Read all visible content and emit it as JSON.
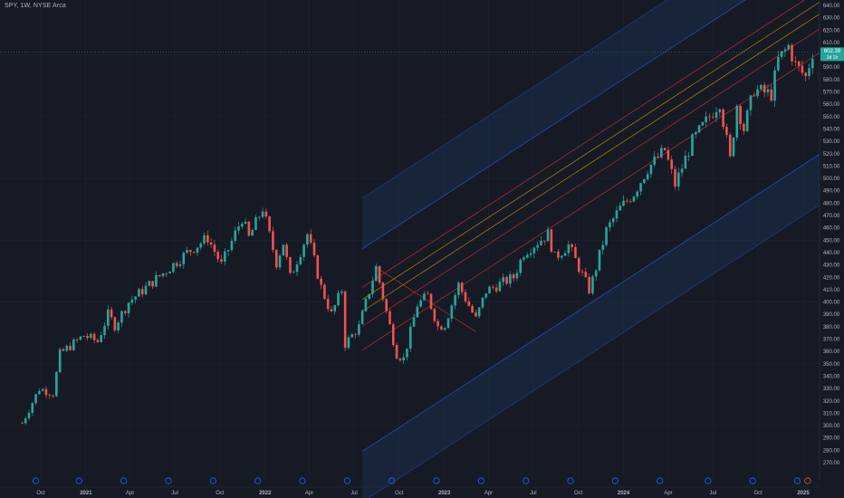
{
  "header": {
    "symbol_label": "SPY, 1W, NYSE Arca"
  },
  "price_tag": {
    "price": "602.39",
    "countdown": "3d 1h"
  },
  "colors": {
    "background": "#161a25",
    "grid": "#1f2330",
    "bull": "#26a69a",
    "bear": "#ef5350",
    "channel_outer": "#2962ff",
    "channel_fill": "#1e3a5f",
    "fib_mid": "#f7a600",
    "fib_red": "#e53935",
    "tag_bg": "#26a69a",
    "axis_text": "#b2b5be"
  },
  "chart_data": {
    "type": "candlestick",
    "y_axis": {
      "min": 265,
      "max": 645,
      "ticks": [
        270,
        280,
        290,
        300,
        310,
        320,
        330,
        340,
        350,
        360,
        370,
        380,
        390,
        400,
        410,
        420,
        430,
        440,
        450,
        460,
        470,
        480,
        490,
        500,
        510,
        520,
        530,
        540,
        550,
        560,
        570,
        580,
        590,
        600,
        610,
        620,
        630,
        640
      ]
    },
    "x_axis": {
      "labels": [
        {
          "text": "Oct",
          "date": "2020-10-01"
        },
        {
          "text": "2021",
          "date": "2021-01-01",
          "year": true
        },
        {
          "text": "Apr",
          "date": "2021-04-01"
        },
        {
          "text": "Jul",
          "date": "2021-07-01"
        },
        {
          "text": "Oct",
          "date": "2021-10-01"
        },
        {
          "text": "2022",
          "date": "2022-01-01",
          "year": true
        },
        {
          "text": "Apr",
          "date": "2022-04-01"
        },
        {
          "text": "Jul",
          "date": "2022-07-01"
        },
        {
          "text": "Oct",
          "date": "2022-10-01"
        },
        {
          "text": "2023",
          "date": "2023-01-01",
          "year": true
        },
        {
          "text": "Apr",
          "date": "2023-04-01"
        },
        {
          "text": "Jul",
          "date": "2023-07-01"
        },
        {
          "text": "Oct",
          "date": "2023-10-01"
        },
        {
          "text": "2024",
          "date": "2024-01-01",
          "year": true
        },
        {
          "text": "Apr",
          "date": "2024-04-01"
        },
        {
          "text": "Jul",
          "date": "2024-07-01"
        },
        {
          "text": "Oct",
          "date": "2024-10-01"
        },
        {
          "text": "2025",
          "date": "2025-01-01",
          "year": true
        }
      ]
    },
    "series": [
      {
        "points": [
          [
            "2020-08-24",
            302
          ],
          [
            "2020-09-28",
            330
          ],
          [
            "2020-10-26",
            326
          ],
          [
            "2020-11-09",
            358
          ],
          [
            "2020-12-28",
            373
          ],
          [
            "2021-01-25",
            368
          ],
          [
            "2021-02-15",
            390
          ],
          [
            "2021-03-01",
            381
          ],
          [
            "2021-03-29",
            400
          ],
          [
            "2021-05-10",
            414
          ],
          [
            "2021-06-21",
            428
          ],
          [
            "2021-07-26",
            440
          ],
          [
            "2021-09-06",
            452
          ],
          [
            "2021-10-04",
            430
          ],
          [
            "2021-11-15",
            468
          ],
          [
            "2021-11-29",
            452
          ],
          [
            "2021-12-27",
            476
          ],
          [
            "2022-01-24",
            432
          ],
          [
            "2022-02-07",
            448
          ],
          [
            "2022-02-21",
            420
          ],
          [
            "2022-03-28",
            455
          ],
          [
            "2022-04-25",
            412
          ],
          [
            "2022-05-16",
            390
          ],
          [
            "2022-06-06",
            410
          ],
          [
            "2022-06-13",
            366
          ],
          [
            "2022-07-11",
            380
          ],
          [
            "2022-08-15",
            428
          ],
          [
            "2022-09-05",
            392
          ],
          [
            "2022-09-26",
            358
          ],
          [
            "2022-10-10",
            354
          ],
          [
            "2022-11-07",
            398
          ],
          [
            "2022-11-28",
            405
          ],
          [
            "2022-12-19",
            380
          ],
          [
            "2023-01-02",
            382
          ],
          [
            "2023-01-30",
            414
          ],
          [
            "2023-03-06",
            386
          ],
          [
            "2023-03-27",
            409
          ],
          [
            "2023-05-22",
            420
          ],
          [
            "2023-06-12",
            440
          ],
          [
            "2023-07-31",
            455
          ],
          [
            "2023-08-14",
            436
          ],
          [
            "2023-09-11",
            446
          ],
          [
            "2023-10-23",
            410
          ],
          [
            "2023-10-30",
            418
          ],
          [
            "2023-11-27",
            458
          ],
          [
            "2023-12-25",
            476
          ],
          [
            "2024-01-22",
            488
          ],
          [
            "2024-02-19",
            508
          ],
          [
            "2024-03-25",
            523
          ],
          [
            "2024-04-15",
            495
          ],
          [
            "2024-05-20",
            530
          ],
          [
            "2024-07-15",
            562
          ],
          [
            "2024-08-05",
            515
          ],
          [
            "2024-08-19",
            560
          ],
          [
            "2024-09-02",
            540
          ],
          [
            "2024-09-23",
            572
          ],
          [
            "2024-10-28",
            568
          ],
          [
            "2024-11-11",
            596
          ],
          [
            "2024-12-02",
            607
          ],
          [
            "2024-12-16",
            592
          ],
          [
            "2025-01-06",
            582
          ],
          [
            "2025-01-20",
            602
          ]
        ]
      }
    ],
    "fib_channel": {
      "levels": [
        -1.5,
        -1,
        0,
        0.236,
        0.382,
        0.5,
        0.618,
        1,
        1.5
      ]
    }
  }
}
